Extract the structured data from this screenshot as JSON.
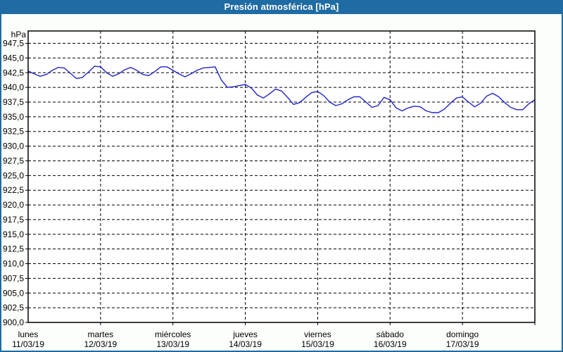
{
  "window": {
    "title": "Presión atmosférica [hPa]"
  },
  "colors": {
    "titlebar": "#1f6ba3",
    "frame": "#1f6ba3",
    "background": "#fcfefb",
    "plot_background": "#ffffff",
    "grid": "#000000",
    "axis": "#000000",
    "title_text": "#ffffff",
    "label_text": "#000000",
    "line": "#2323c8"
  },
  "chart_data": {
    "type": "line",
    "title": "Presión atmosférica [hPa]",
    "ylabel": "hPa",
    "ylim": [
      900,
      949.6
    ],
    "y_tick_step": 2.5,
    "grid": "dashed",
    "legend": "none",
    "y_ticks": [
      {
        "value": 947.5,
        "label": "947,5"
      },
      {
        "value": 945.0,
        "label": "945,0"
      },
      {
        "value": 942.5,
        "label": "942,5"
      },
      {
        "value": 940.0,
        "label": "940,0"
      },
      {
        "value": 937.5,
        "label": "937,5"
      },
      {
        "value": 935.0,
        "label": "935,0"
      },
      {
        "value": 932.5,
        "label": "932,5"
      },
      {
        "value": 930.0,
        "label": "930,0"
      },
      {
        "value": 927.5,
        "label": "927,5"
      },
      {
        "value": 925.0,
        "label": "925,0"
      },
      {
        "value": 922.5,
        "label": "922,5"
      },
      {
        "value": 920.0,
        "label": "920,0"
      },
      {
        "value": 917.5,
        "label": "917,5"
      },
      {
        "value": 915.0,
        "label": "915,0"
      },
      {
        "value": 912.5,
        "label": "912,5"
      },
      {
        "value": 910.0,
        "label": "910,0"
      },
      {
        "value": 907.5,
        "label": "907,5"
      },
      {
        "value": 905.0,
        "label": "905,0"
      },
      {
        "value": 902.5,
        "label": "902,5"
      },
      {
        "value": 900.0,
        "label": "900,0"
      }
    ],
    "x_days": [
      {
        "name": "lunes",
        "date": "11/03/19"
      },
      {
        "name": "martes",
        "date": "12/03/19"
      },
      {
        "name": "miércoles",
        "date": "13/03/19"
      },
      {
        "name": "jueves",
        "date": "14/03/19"
      },
      {
        "name": "viernes",
        "date": "15/03/19"
      },
      {
        "name": "sábado",
        "date": "16/03/19"
      },
      {
        "name": "domingo",
        "date": "17/03/19"
      }
    ],
    "x_hours_span": 168,
    "sample_interval_hours": 2,
    "series": [
      {
        "name": "Presión atmosférica",
        "unit": "hPa",
        "values": [
          942.8,
          942.3,
          941.9,
          942.2,
          942.9,
          943.4,
          943.3,
          942.4,
          941.5,
          941.7,
          942.6,
          943.6,
          943.5,
          942.5,
          941.9,
          942.3,
          943.0,
          943.4,
          942.9,
          942.2,
          942.0,
          942.7,
          943.5,
          943.5,
          942.9,
          942.3,
          941.8,
          942.3,
          942.9,
          943.3,
          943.4,
          943.5,
          941.3,
          940.0,
          940.1,
          940.3,
          940.5,
          939.9,
          938.7,
          938.2,
          938.9,
          939.7,
          939.4,
          938.3,
          937.1,
          937.4,
          938.3,
          939.1,
          939.3,
          938.6,
          937.5,
          936.9,
          937.2,
          937.9,
          938.4,
          938.4,
          937.5,
          936.6,
          936.9,
          938.3,
          937.9,
          936.5,
          936.0,
          936.5,
          936.8,
          936.7,
          936.0,
          935.7,
          935.7,
          936.3,
          937.3,
          938.2,
          938.4,
          937.5,
          936.7,
          937.3,
          938.5,
          939.0,
          938.4,
          937.4,
          936.6,
          936.2,
          936.2,
          937.2,
          937.9
        ]
      }
    ]
  }
}
